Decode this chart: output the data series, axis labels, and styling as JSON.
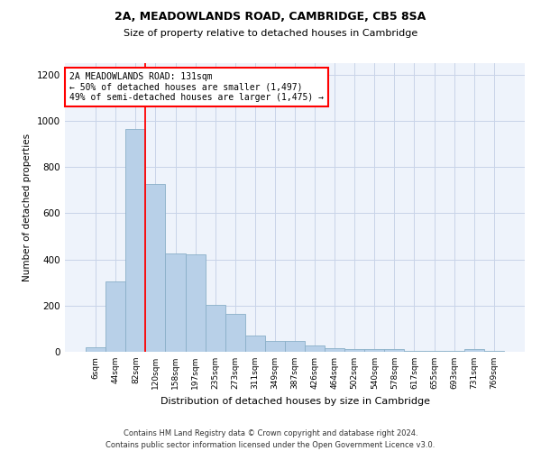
{
  "title1": "2A, MEADOWLANDS ROAD, CAMBRIDGE, CB5 8SA",
  "title2": "Size of property relative to detached houses in Cambridge",
  "xlabel": "Distribution of detached houses by size in Cambridge",
  "ylabel": "Number of detached properties",
  "bar_color": "#b8d0e8",
  "bar_edge_color": "#8aafc8",
  "categories": [
    "6sqm",
    "44sqm",
    "82sqm",
    "120sqm",
    "158sqm",
    "197sqm",
    "235sqm",
    "273sqm",
    "311sqm",
    "349sqm",
    "387sqm",
    "426sqm",
    "464sqm",
    "502sqm",
    "540sqm",
    "578sqm",
    "617sqm",
    "655sqm",
    "693sqm",
    "731sqm",
    "769sqm"
  ],
  "values": [
    20,
    305,
    965,
    725,
    425,
    420,
    205,
    165,
    70,
    45,
    45,
    27,
    15,
    10,
    10,
    10,
    3,
    3,
    3,
    12,
    3
  ],
  "ylim": [
    0,
    1250
  ],
  "yticks": [
    0,
    200,
    400,
    600,
    800,
    1000,
    1200
  ],
  "red_line_x": 2.5,
  "annotation_line1": "2A MEADOWLANDS ROAD: 131sqm",
  "annotation_line2": "← 50% of detached houses are smaller (1,497)",
  "annotation_line3": "49% of semi-detached houses are larger (1,475) →",
  "footer": "Contains HM Land Registry data © Crown copyright and database right 2024.\nContains public sector information licensed under the Open Government Licence v3.0.",
  "background_color": "#eef3fb",
  "grid_color": "#c8d4e8"
}
